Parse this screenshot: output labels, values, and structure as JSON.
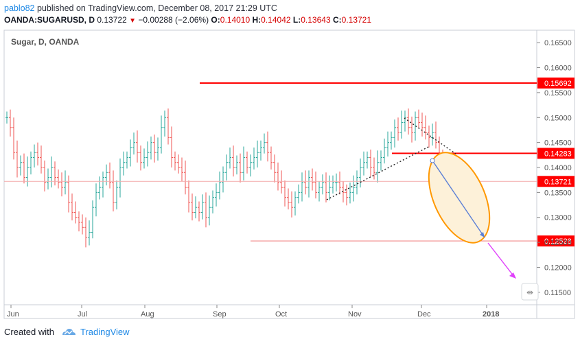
{
  "header": {
    "username": "pablo82",
    "publish_text": " published on TradingView.com, December 08, 2017 21:29 UTC",
    "symbol": "OANDA:SUGARUSD, D",
    "last": "0.13722",
    "change": "−0.00288 (−2.06%)",
    "o_label": "O:",
    "o_value": "0.14010",
    "h_label": "H:",
    "h_value": "0.14042",
    "l_label": "L:",
    "l_value": "0.13643",
    "c_label": "C:",
    "c_value": "0.13721"
  },
  "chart_data": {
    "type": "ohlc",
    "title": "Sugar, D, OANDA",
    "y_ticks": [
      "0.16500",
      "0.16000",
      "0.15500",
      "0.15000",
      "0.14500",
      "0.14000",
      "0.13500",
      "0.13000",
      "0.12500",
      "0.12000",
      "0.11500"
    ],
    "ylim": [
      0.1125,
      0.1675
    ],
    "x_labels": [
      "Jun",
      "Jul",
      "Aug",
      "Sep",
      "Oct",
      "Nov",
      "Dec",
      "2018"
    ],
    "price_levels": [
      {
        "label": "0.15692",
        "value": 0.15692,
        "kind": "resistance"
      },
      {
        "label": "0.14283",
        "value": 0.14283,
        "kind": "support"
      },
      {
        "label": "0.13721",
        "value": 0.13721,
        "kind": "last"
      },
      {
        "label": "0.12528",
        "value": 0.12528,
        "kind": "target"
      }
    ],
    "closes": [
      0.15,
      0.148,
      0.143,
      0.14,
      0.141,
      0.138,
      0.14,
      0.142,
      0.143,
      0.142,
      0.14,
      0.137,
      0.138,
      0.14,
      0.138,
      0.137,
      0.136,
      0.137,
      0.133,
      0.131,
      0.13,
      0.129,
      0.128,
      0.126,
      0.127,
      0.132,
      0.135,
      0.136,
      0.138,
      0.139,
      0.137,
      0.133,
      0.136,
      0.14,
      0.141,
      0.142,
      0.144,
      0.145,
      0.143,
      0.141,
      0.142,
      0.143,
      0.145,
      0.143,
      0.144,
      0.148,
      0.15,
      0.146,
      0.142,
      0.141,
      0.14,
      0.139,
      0.136,
      0.133,
      0.131,
      0.132,
      0.131,
      0.133,
      0.13,
      0.132,
      0.134,
      0.135,
      0.137,
      0.139,
      0.141,
      0.142,
      0.14,
      0.141,
      0.139,
      0.142,
      0.14,
      0.141,
      0.142,
      0.143,
      0.144,
      0.145,
      0.143,
      0.141,
      0.139,
      0.137,
      0.136,
      0.134,
      0.133,
      0.132,
      0.134,
      0.135,
      0.137,
      0.136,
      0.138,
      0.137,
      0.135,
      0.136,
      0.137,
      0.135,
      0.136,
      0.137,
      0.137,
      0.136,
      0.135,
      0.134,
      0.135,
      0.136,
      0.138,
      0.14,
      0.141,
      0.142,
      0.14,
      0.139,
      0.141,
      0.142,
      0.144,
      0.145,
      0.146,
      0.148,
      0.147,
      0.149,
      0.15,
      0.148,
      0.147,
      0.15,
      0.149,
      0.148,
      0.147,
      0.146,
      0.147,
      0.145,
      0.142,
      0.13721
    ]
  },
  "annotation": {
    "pulse_left": "←",
    "pulse_right": "→"
  },
  "footer": {
    "created_with": "Created with",
    "brand": "TradingView"
  },
  "colors": {
    "up": "#26a69a",
    "down": "#ef5350",
    "level": "#ff0000",
    "projection": "#5b7fd6",
    "arrow2": "#e040fb",
    "ellipse_stroke": "#ff9800",
    "ellipse_fill": "#fdf1d9"
  }
}
